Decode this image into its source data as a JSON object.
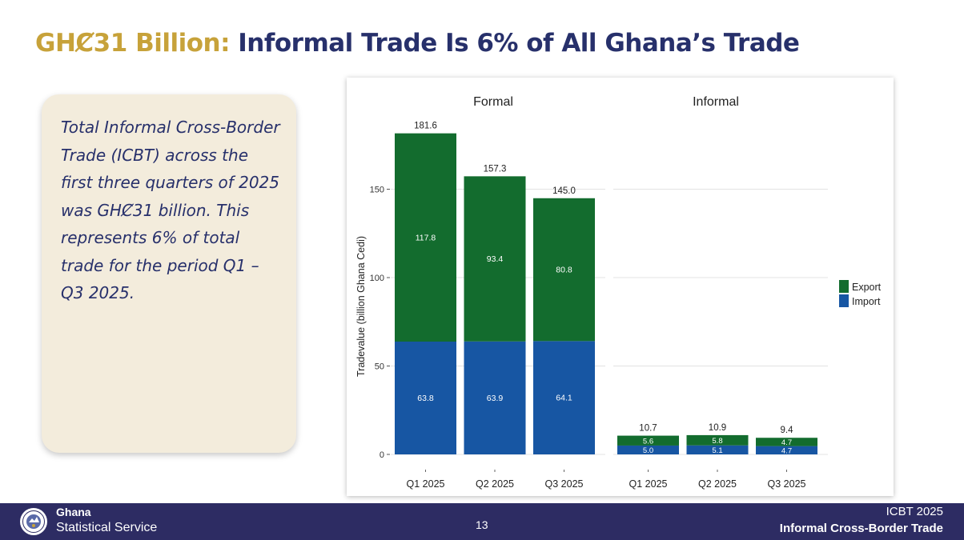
{
  "title": {
    "highlight": "GHȻ31 Billion:",
    "rest": "Informal Trade Is 6% of All Ghana’s Trade"
  },
  "note": "Total Informal Cross-Border Trade (ICBT) across the first three quarters of 2025 was GHȻ31 billion. This represents 6% of total trade for the period Q1 – Q3 2025.",
  "chart_data": {
    "type": "bar",
    "stacked": true,
    "ylabel": "Tradevalue (billion Ghana Cedi)",
    "ylim": [
      0,
      190
    ],
    "yticks": [
      0,
      50,
      100,
      150
    ],
    "grid": true,
    "legend_position": "right",
    "panels": [
      {
        "title": "Formal",
        "categories": [
          "Q1 2025",
          "Q2 2025",
          "Q3 2025"
        ],
        "series": [
          {
            "name": "Import",
            "values": [
              63.8,
              63.9,
              64.1
            ],
            "labels": [
              "63.8",
              "63.9",
              "64.1"
            ],
            "color": "#1756a3"
          },
          {
            "name": "Export",
            "values": [
              117.8,
              93.4,
              80.8
            ],
            "labels": [
              "117.8",
              "93.4",
              "80.8"
            ],
            "color": "#136c2e"
          }
        ],
        "totals": [
          "181.6",
          "157.3",
          "145.0"
        ]
      },
      {
        "title": "Informal",
        "categories": [
          "Q1 2025",
          "Q2 2025",
          "Q3 2025"
        ],
        "series": [
          {
            "name": "Import",
            "values": [
              5.0,
              5.1,
              4.7
            ],
            "labels": [
              "5.0",
              "5.1",
              "4.7"
            ],
            "color": "#1756a3"
          },
          {
            "name": "Export",
            "values": [
              5.6,
              5.8,
              4.7
            ],
            "labels": [
              "5.6",
              "5.8",
              "4.7"
            ],
            "color": "#136c2e"
          }
        ],
        "totals": [
          "10.7",
          "10.9",
          "9.4"
        ]
      }
    ],
    "legend": [
      {
        "name": "Export",
        "color": "#136c2e"
      },
      {
        "name": "Import",
        "color": "#1756a3"
      }
    ]
  },
  "footer": {
    "org_line1": "Ghana",
    "org_line2": "Statistical Service",
    "page": "13",
    "right_line1": "ICBT 2025",
    "right_line2": "Informal Cross-Border Trade"
  },
  "colors": {
    "title_gold": "#c7a23a",
    "title_navy": "#27306b",
    "footer_bg": "#2d2c63",
    "note_bg": "#f3ecdc"
  },
  "icons": {
    "logo": "ghana-statistical-service-seal-icon"
  }
}
